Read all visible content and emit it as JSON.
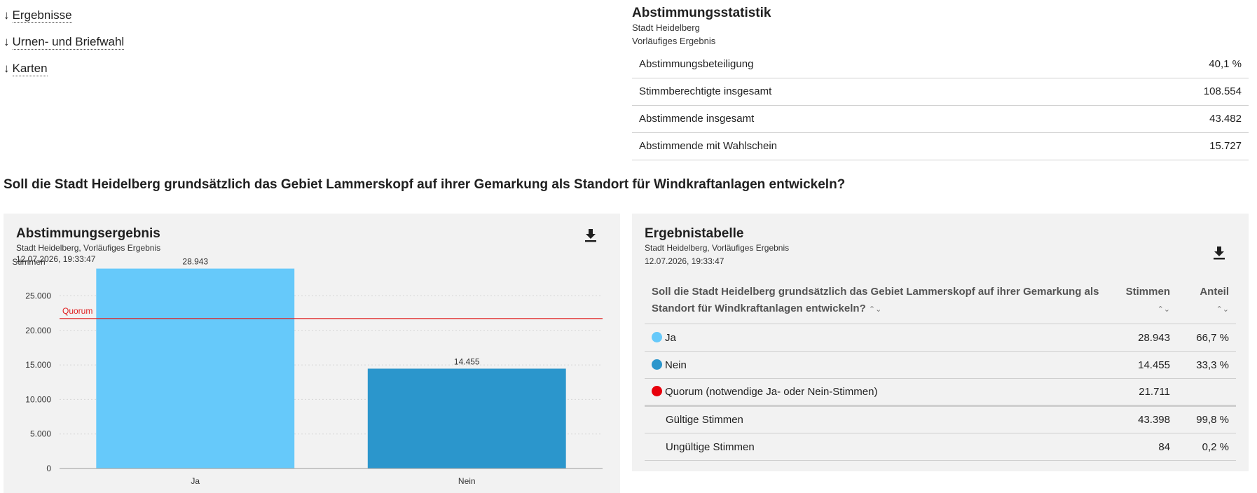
{
  "nav": {
    "items": [
      {
        "label": "Ergebnisse"
      },
      {
        "label": "Urnen- und Briefwahl"
      },
      {
        "label": "Karten"
      }
    ]
  },
  "stats": {
    "title": "Abstimmungsstatistik",
    "subtitle1": "Stadt Heidelberg",
    "subtitle2": "Vorläufiges Ergebnis",
    "rows": [
      {
        "label": "Abstimmungsbeteiligung",
        "value": "40,1 %"
      },
      {
        "label": "Stimmberechtigte insgesamt",
        "value": "108.554"
      },
      {
        "label": "Abstimmende insgesamt",
        "value": "43.482"
      },
      {
        "label": "Abstimmende mit Wahlschein",
        "value": "15.727"
      }
    ]
  },
  "question": "Soll die Stadt Heidelberg grundsätzlich das Gebiet Lammerskopf auf ihrer Gemarkung als Standort für Windkraftanlagen entwickeln?",
  "chart_panel": {
    "title": "Abstimmungsergebnis",
    "subtitle": "Stadt Heidelberg, Vorläufiges Ergebnis",
    "timestamp": "12.07.2026, 19:33:47",
    "download_icon": "download-icon"
  },
  "chart_data": {
    "type": "bar",
    "categories": [
      "Ja",
      "Nein"
    ],
    "values": [
      28943,
      14455
    ],
    "value_labels": [
      "28.943",
      "14.455"
    ],
    "colors": [
      "#66c9fa",
      "#2b96cc"
    ],
    "ylabel": "Stimmen",
    "ylim": [
      0,
      29000
    ],
    "yticks": [
      0,
      5000,
      10000,
      15000,
      20000,
      25000
    ],
    "ytick_labels": [
      "0",
      "5.000",
      "10.000",
      "15.000",
      "20.000",
      "25.000"
    ],
    "grid": true,
    "reference_line": {
      "label": "Quorum",
      "value": 21711,
      "color": "#e02020"
    }
  },
  "table_panel": {
    "title": "Ergebnistabelle",
    "subtitle": "Stadt Heidelberg, Vorläufiges Ergebnis",
    "timestamp": "12.07.2026, 19:33:47",
    "download_icon": "download-icon",
    "headers": {
      "question": "Soll die Stadt Heidelberg grundsätzlich das Gebiet Lammerskopf auf ihrer Gemarkung als Standort für Windkraftanlagen entwickeln?",
      "votes": "Stimmen",
      "share": "Anteil"
    },
    "rows": [
      {
        "label": "Ja",
        "color": "#66c9fa",
        "votes": "28.943",
        "share": "66,7 %"
      },
      {
        "label": "Nein",
        "color": "#2b96cc",
        "votes": "14.455",
        "share": "33,3 %"
      },
      {
        "label": "Quorum (notwendige Ja- oder Nein-Stimmen)",
        "color": "#e8000b",
        "votes": "21.711",
        "share": ""
      }
    ],
    "summary_rows": [
      {
        "label": "Gültige Stimmen",
        "votes": "43.398",
        "share": "99,8 %"
      },
      {
        "label": "Ungültige Stimmen",
        "votes": "84",
        "share": "0,2 %"
      }
    ]
  }
}
